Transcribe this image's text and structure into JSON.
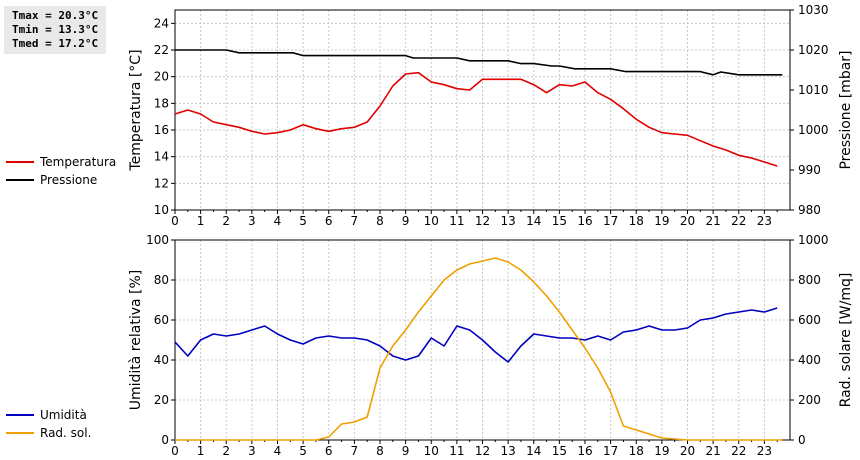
{
  "stats": [
    {
      "text": "Tmax = 20.3°C"
    },
    {
      "text": "Tmin = 13.3°C"
    },
    {
      "text": "Tmed = 17.2°C"
    }
  ],
  "chart_data": [
    {
      "type": "line",
      "title": "",
      "xlabel": "",
      "ylabel": "Temperatura [°C]",
      "y2label": "Pressione [mbar]",
      "ylim": [
        10,
        25
      ],
      "y2lim": [
        980,
        1030
      ],
      "xlim": [
        0,
        24
      ],
      "xticks": [
        0,
        1,
        2,
        3,
        4,
        5,
        6,
        7,
        8,
        9,
        10,
        11,
        12,
        13,
        14,
        15,
        16,
        17,
        18,
        19,
        20,
        21,
        22,
        23
      ],
      "yticks": [
        10,
        12,
        14,
        16,
        18,
        20,
        22,
        24
      ],
      "y2ticks": [
        980,
        990,
        1000,
        1010,
        1020,
        1030
      ],
      "grid": true,
      "legend_position": "left",
      "series": [
        {
          "name": "Temperatura",
          "axis": "left",
          "color": "#e00000",
          "x": [
            0,
            0.5,
            1,
            1.5,
            2,
            2.5,
            3,
            3.5,
            4,
            4.5,
            5,
            5.5,
            6,
            6.5,
            7,
            7.5,
            8,
            8.5,
            9,
            9.5,
            10,
            10.5,
            11,
            11.5,
            12,
            12.5,
            13,
            13.5,
            14,
            14.5,
            15,
            15.5,
            16,
            16.5,
            17,
            17.5,
            18,
            18.5,
            19,
            19.5,
            20,
            20.5,
            21,
            21.5,
            22,
            22.5,
            23,
            23.5
          ],
          "y": [
            17.2,
            17.5,
            17.2,
            16.6,
            16.4,
            16.2,
            15.9,
            15.7,
            15.8,
            16.0,
            16.4,
            16.1,
            15.9,
            16.1,
            16.2,
            16.6,
            17.8,
            19.3,
            20.2,
            20.3,
            19.6,
            19.4,
            19.1,
            19.0,
            19.8,
            19.8,
            19.8,
            19.8,
            19.4,
            18.8,
            19.4,
            19.3,
            19.6,
            18.8,
            18.3,
            17.6,
            16.8,
            16.2,
            15.8,
            15.7,
            15.6,
            15.2,
            14.8,
            14.5,
            14.1,
            13.9,
            13.6,
            13.3
          ]
        },
        {
          "name": "Pressione",
          "axis": "right",
          "color": "#000000",
          "x": [
            0,
            1,
            2,
            2.5,
            3,
            4,
            4.6,
            5,
            6,
            7,
            8,
            9,
            9.3,
            10,
            11,
            11.5,
            12,
            13,
            13.5,
            14,
            14.7,
            15,
            15.6,
            16,
            17,
            17.6,
            18,
            19,
            20,
            20.5,
            21,
            21.3,
            22,
            23,
            23.7
          ],
          "y": [
            1020,
            1020,
            1020,
            1019.3,
            1019.3,
            1019.3,
            1019.3,
            1018.6,
            1018.6,
            1018.6,
            1018.6,
            1018.6,
            1018,
            1018,
            1018,
            1017.3,
            1017.3,
            1017.3,
            1016.6,
            1016.6,
            1016,
            1016,
            1015.3,
            1015.3,
            1015.3,
            1014.6,
            1014.6,
            1014.6,
            1014.6,
            1014.6,
            1013.8,
            1014.5,
            1013.8,
            1013.8,
            1013.8
          ]
        }
      ]
    },
    {
      "type": "line",
      "title": "",
      "xlabel": "",
      "ylabel": "Umidità relativa [%]",
      "y2label": "Rad. solare [W/mq]",
      "ylim": [
        0,
        100
      ],
      "y2lim": [
        0,
        1000
      ],
      "xlim": [
        0,
        24
      ],
      "xticks": [
        0,
        1,
        2,
        3,
        4,
        5,
        6,
        7,
        8,
        9,
        10,
        11,
        12,
        13,
        14,
        15,
        16,
        17,
        18,
        19,
        20,
        21,
        22,
        23
      ],
      "yticks": [
        0,
        20,
        40,
        60,
        80,
        100
      ],
      "y2ticks": [
        0,
        200,
        400,
        600,
        800,
        1000
      ],
      "grid": true,
      "legend_position": "left",
      "series": [
        {
          "name": "Umidità",
          "axis": "left",
          "color": "#0000c0",
          "x": [
            0,
            0.5,
            1,
            1.5,
            2,
            2.5,
            3,
            3.5,
            4,
            4.5,
            5,
            5.5,
            6,
            6.5,
            7,
            7.5,
            8,
            8.5,
            9,
            9.5,
            10,
            10.5,
            11,
            11.5,
            12,
            12.5,
            13,
            13.5,
            14,
            14.5,
            15,
            15.5,
            16,
            16.5,
            17,
            17.5,
            18,
            18.5,
            19,
            19.5,
            20,
            20.5,
            21,
            21.5,
            22,
            22.5,
            23,
            23.5
          ],
          "y": [
            49,
            42,
            50,
            53,
            52,
            53,
            55,
            57,
            53,
            50,
            48,
            51,
            52,
            51,
            51,
            50,
            47,
            42,
            40,
            42,
            51,
            47,
            57,
            55,
            50,
            44,
            39,
            47,
            53,
            52,
            51,
            51,
            50,
            52,
            50,
            54,
            55,
            57,
            55,
            55,
            56,
            60,
            61,
            63,
            64,
            65,
            64,
            66
          ]
        },
        {
          "name": "Rad. sol.",
          "axis": "right",
          "color": "#f0a000",
          "x": [
            0,
            1,
            2,
            3,
            4,
            5,
            5.5,
            6,
            6.5,
            7,
            7.5,
            8,
            8.5,
            9,
            9.5,
            10,
            10.5,
            11,
            11.5,
            12,
            12.5,
            13,
            13.5,
            14,
            14.5,
            15,
            15.5,
            16,
            16.5,
            17,
            17.5,
            18,
            18.5,
            19,
            20,
            21,
            22,
            23,
            23.7
          ],
          "y": [
            0,
            0,
            0,
            0,
            0,
            0,
            0,
            15,
            80,
            90,
            115,
            360,
            470,
            550,
            640,
            720,
            800,
            850,
            880,
            895,
            910,
            890,
            850,
            790,
            720,
            640,
            550,
            460,
            360,
            240,
            70,
            50,
            30,
            10,
            0,
            0,
            0,
            0,
            0
          ]
        }
      ]
    }
  ]
}
